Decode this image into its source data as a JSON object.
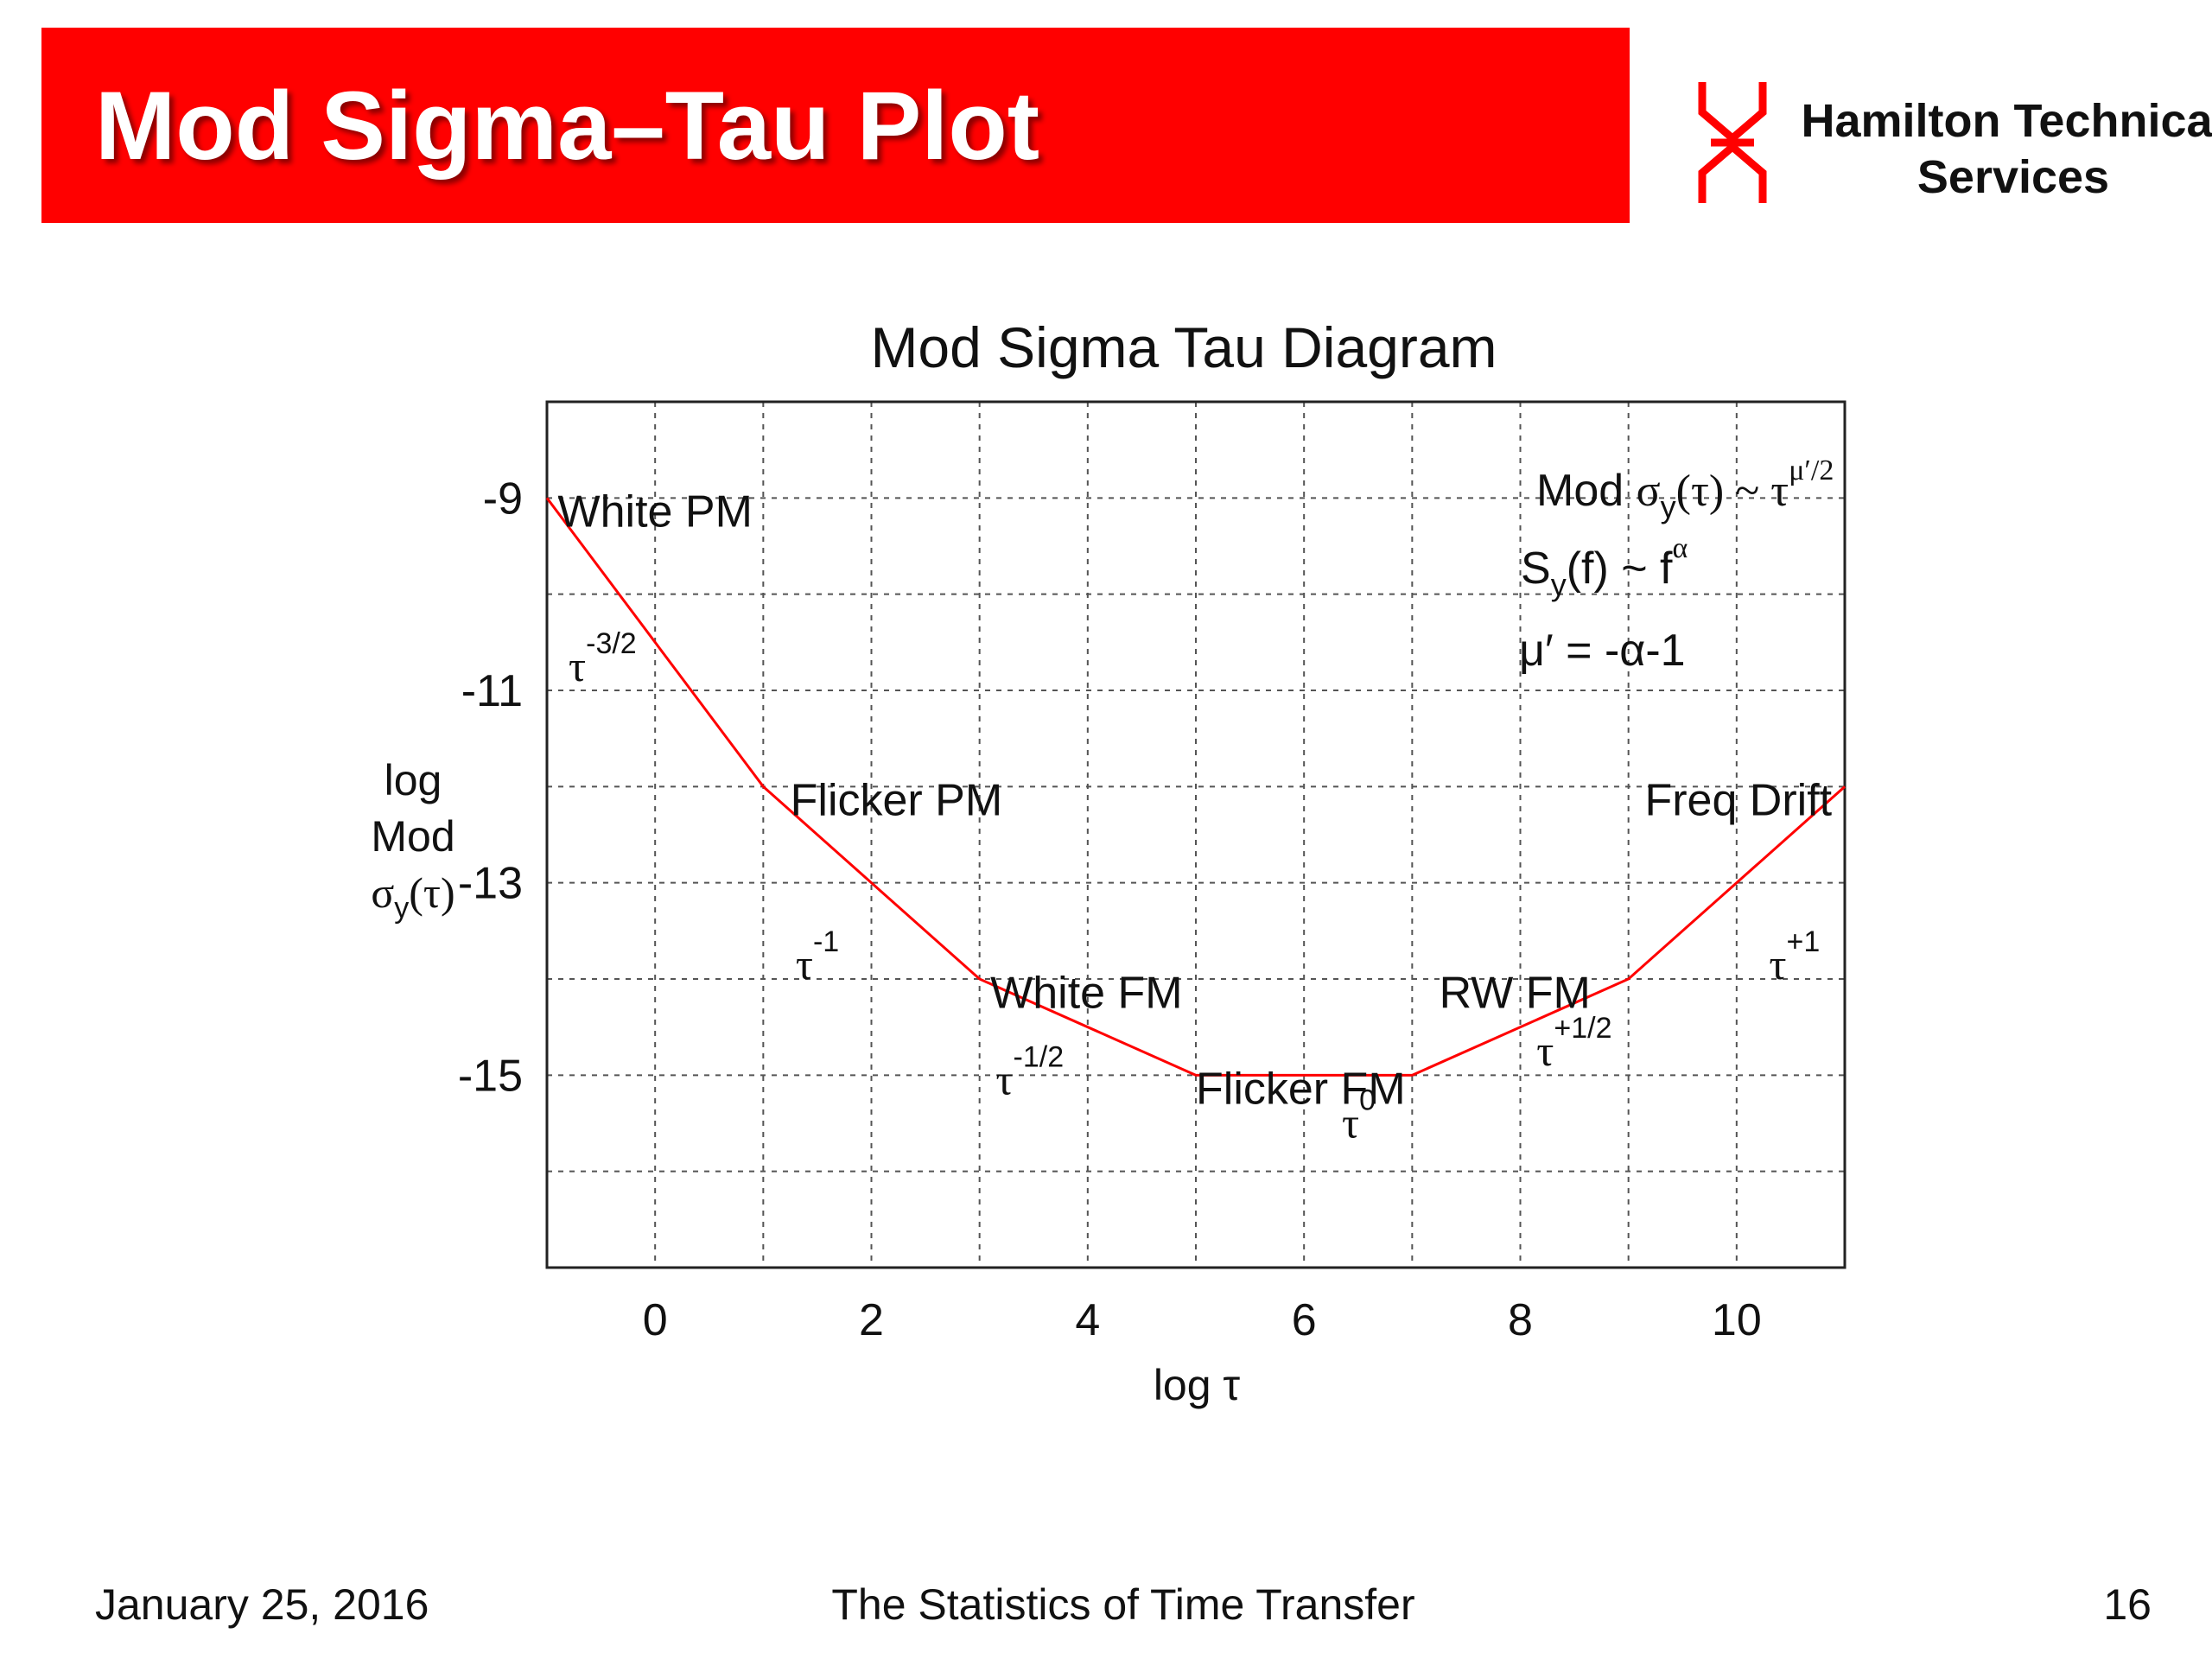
{
  "slide": {
    "title": "Mod Sigma–Tau Plot",
    "company_line1": "Hamilton Technical",
    "company_line2": "Services",
    "footer_date": "January 25, 2016",
    "footer_center": "The Statistics of Time Transfer",
    "page_number": "16"
  },
  "colors": {
    "title_bar": "#ff0000",
    "curve": "#ff0000",
    "logo": "#ff0000"
  },
  "chart_data": {
    "type": "line",
    "title": "Mod Sigma Tau Diagram",
    "xlabel": "log τ",
    "ylabel_lines": [
      "log",
      "Mod"
    ],
    "ylabel_sigma": "σ",
    "ylabel_sub": "y",
    "ylabel_arg": "(τ)",
    "xlim": [
      -1,
      11
    ],
    "ylim": [
      -17,
      -8
    ],
    "xticks": [
      0,
      2,
      4,
      6,
      8,
      10
    ],
    "yticks": [
      -9,
      -11,
      -13,
      -15
    ],
    "grid": true,
    "series": [
      {
        "x": [
          -1,
          1,
          3,
          5,
          7,
          9,
          11
        ],
        "y": [
          -9,
          -12,
          -14,
          -15,
          -15,
          -14,
          -12
        ]
      }
    ],
    "region_labels": [
      {
        "text": "White PM",
        "x": -0.9,
        "y": -9.3
      },
      {
        "text": "Flicker PM",
        "x": 1.25,
        "y": -12.3
      },
      {
        "text": "White FM",
        "x": 3.1,
        "y": -14.3
      },
      {
        "text": "Flicker FM",
        "x": 5.0,
        "y": -15.3
      },
      {
        "text": "RW FM",
        "x": 7.25,
        "y": -14.3
      },
      {
        "text": "Freq Drift",
        "x": 9.15,
        "y": -12.3
      }
    ],
    "slope_labels": [
      {
        "base": "τ",
        "exp": "-3/2",
        "x": -0.8,
        "y": -10.9
      },
      {
        "base": "τ",
        "exp": "-1",
        "x": 1.3,
        "y": -14.0
      },
      {
        "base": "τ",
        "exp": "-1/2",
        "x": 3.15,
        "y": -15.2
      },
      {
        "base": "τ",
        "exp": "0",
        "x": 6.35,
        "y": -15.65
      },
      {
        "base": "τ",
        "exp": "+1/2",
        "x": 8.15,
        "y": -14.9
      },
      {
        "base": "τ",
        "exp": "+1",
        "x": 10.3,
        "y": -14.0
      }
    ],
    "formulas": {
      "f1_prefix": "Mod ",
      "f1_sigma": "σ",
      "f1_sub": "y",
      "f1_mid": "(τ) ~ τ",
      "f1_sup": "μ′/2",
      "f2_prefix": "S",
      "f2_sub": "y",
      "f2_mid": "(f) ~ f",
      "f2_sup": "α",
      "f3": "μ′ = -α-1"
    }
  }
}
